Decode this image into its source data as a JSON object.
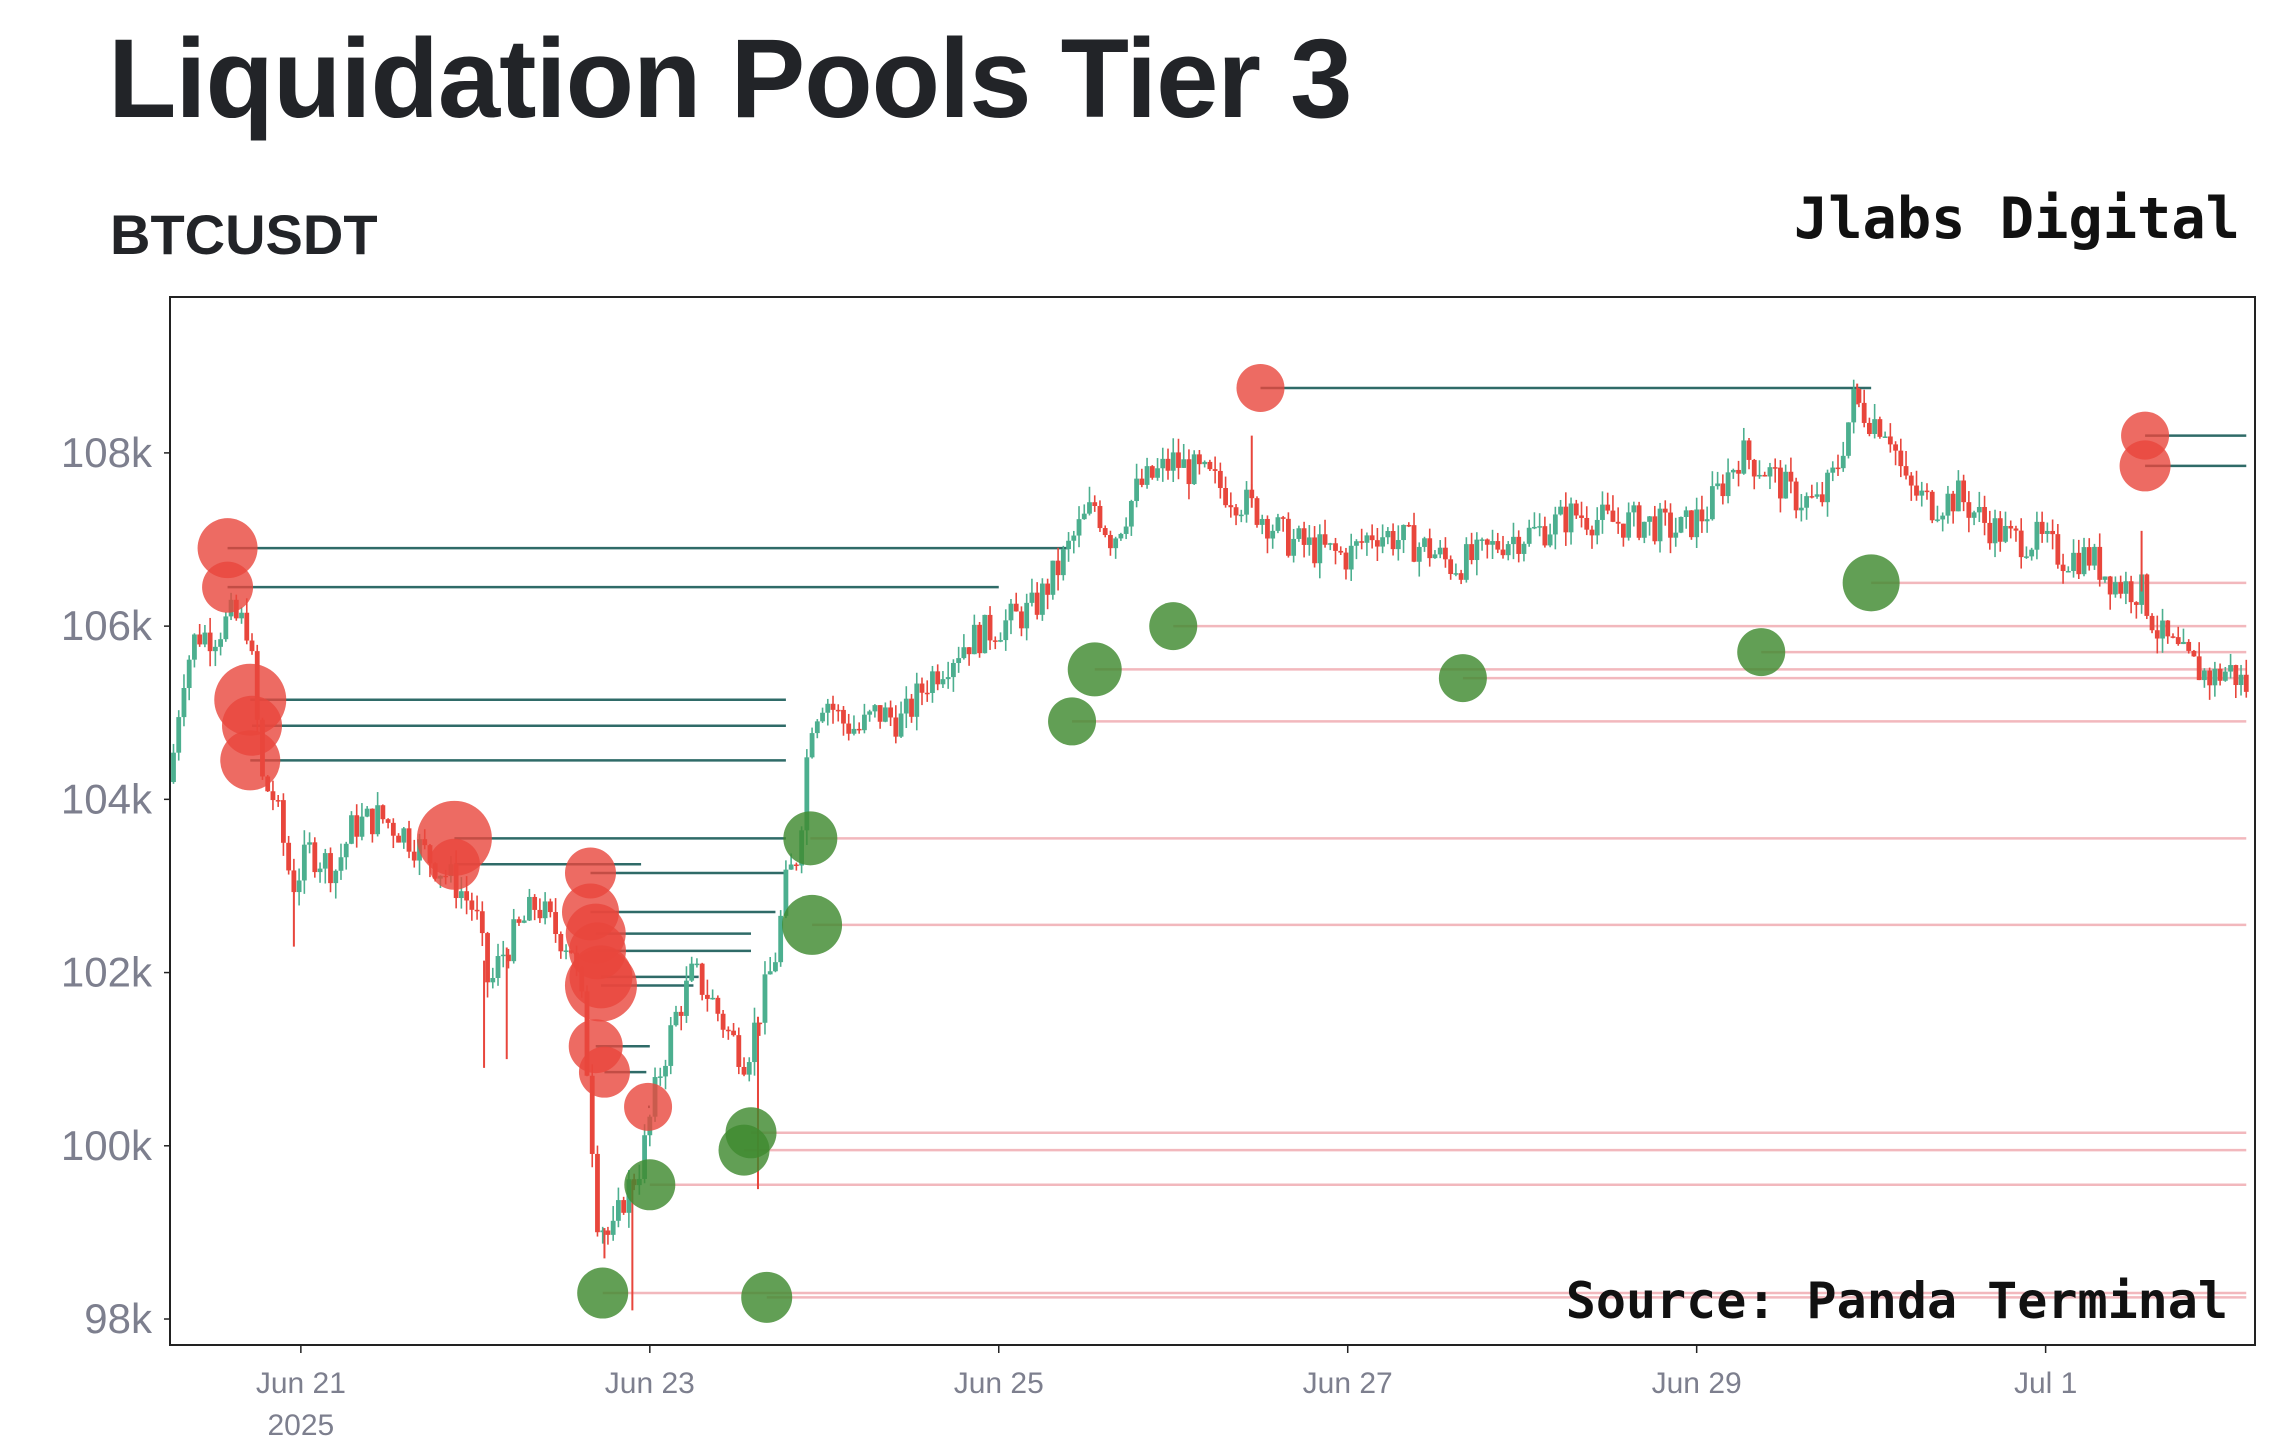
{
  "header": {
    "title": "Liquidation Pools Tier 3",
    "symbol": "BTCUSDT",
    "brand": "Jlabs Digital"
  },
  "chart_data": {
    "type": "candlestick",
    "source": "Source: Panda Terminal",
    "xlim": [
      -0.75,
      11.2
    ],
    "ylim": [
      97700,
      109800
    ],
    "yticks": [
      {
        "value": 98000,
        "label": "98k"
      },
      {
        "value": 100000,
        "label": "100k"
      },
      {
        "value": 102000,
        "label": "102k"
      },
      {
        "value": 104000,
        "label": "104k"
      },
      {
        "value": 106000,
        "label": "106k"
      },
      {
        "value": 108000,
        "label": "108k"
      }
    ],
    "xticks": [
      {
        "day": 0,
        "label": "Jun 21",
        "sub": "2025"
      },
      {
        "day": 2,
        "label": "Jun 23"
      },
      {
        "day": 4,
        "label": "Jun 25"
      },
      {
        "day": 6,
        "label": "Jun 27"
      },
      {
        "day": 8,
        "label": "Jun 29"
      },
      {
        "day": 10,
        "label": "Jul 1"
      }
    ],
    "colors": {
      "up": "#4caf8f",
      "down": "#e8463c",
      "short_pool": "#e8463c",
      "long_pool": "#3f8a2f",
      "short_line": "#2f6b68",
      "long_line": "#f2b8bd"
    },
    "price_path": [
      [
        -0.75,
        104200
      ],
      [
        -0.68,
        105400
      ],
      [
        -0.6,
        105900
      ],
      [
        -0.5,
        105900
      ],
      [
        -0.4,
        106100
      ],
      [
        -0.3,
        106000
      ],
      [
        -0.22,
        104200
      ],
      [
        -0.15,
        104000
      ],
      [
        -0.05,
        103000
      ],
      [
        0.05,
        103400
      ],
      [
        0.2,
        103200
      ],
      [
        0.3,
        103700
      ],
      [
        0.45,
        103800
      ],
      [
        0.6,
        103600
      ],
      [
        0.7,
        103400
      ],
      [
        0.8,
        103200
      ],
      [
        0.9,
        103000
      ],
      [
        1.0,
        102700
      ],
      [
        1.08,
        101800
      ],
      [
        1.15,
        102200
      ],
      [
        1.25,
        102500
      ],
      [
        1.35,
        102800
      ],
      [
        1.45,
        102500
      ],
      [
        1.55,
        102300
      ],
      [
        1.62,
        101500
      ],
      [
        1.7,
        99200
      ],
      [
        1.78,
        98900
      ],
      [
        1.85,
        99400
      ],
      [
        1.95,
        99800
      ],
      [
        2.05,
        100800
      ],
      [
        2.15,
        101500
      ],
      [
        2.25,
        102000
      ],
      [
        2.35,
        101700
      ],
      [
        2.45,
        101300
      ],
      [
        2.55,
        101000
      ],
      [
        2.65,
        101700
      ],
      [
        2.72,
        102200
      ],
      [
        2.78,
        103000
      ],
      [
        2.85,
        103400
      ],
      [
        2.92,
        104900
      ],
      [
        3.0,
        105200
      ],
      [
        3.1,
        104900
      ],
      [
        3.2,
        104800
      ],
      [
        3.3,
        105000
      ],
      [
        3.45,
        104900
      ],
      [
        3.6,
        105400
      ],
      [
        3.8,
        105800
      ],
      [
        4.0,
        106000
      ],
      [
        4.2,
        106200
      ],
      [
        4.35,
        106700
      ],
      [
        4.45,
        107100
      ],
      [
        4.55,
        107400
      ],
      [
        4.65,
        107000
      ],
      [
        4.8,
        107600
      ],
      [
        5.0,
        107900
      ],
      [
        5.2,
        107700
      ],
      [
        5.35,
        107500
      ],
      [
        5.5,
        107300
      ],
      [
        5.65,
        107000
      ],
      [
        5.8,
        106900
      ],
      [
        6.0,
        106800
      ],
      [
        6.15,
        107100
      ],
      [
        6.3,
        107000
      ],
      [
        6.45,
        106900
      ],
      [
        6.6,
        106700
      ],
      [
        6.75,
        106800
      ],
      [
        6.9,
        107000
      ],
      [
        7.1,
        107100
      ],
      [
        7.3,
        107300
      ],
      [
        7.5,
        107200
      ],
      [
        7.7,
        107200
      ],
      [
        7.9,
        107100
      ],
      [
        8.05,
        107300
      ],
      [
        8.25,
        108000
      ],
      [
        8.4,
        107800
      ],
      [
        8.55,
        107500
      ],
      [
        8.7,
        107400
      ],
      [
        8.8,
        107800
      ],
      [
        8.9,
        108600
      ],
      [
        9.0,
        108400
      ],
      [
        9.1,
        108300
      ],
      [
        9.2,
        107600
      ],
      [
        9.35,
        107400
      ],
      [
        9.5,
        107500
      ],
      [
        9.65,
        107200
      ],
      [
        9.8,
        107000
      ],
      [
        9.95,
        107000
      ],
      [
        10.1,
        106800
      ],
      [
        10.25,
        106800
      ],
      [
        10.4,
        106500
      ],
      [
        10.55,
        106400
      ],
      [
        10.65,
        105900
      ],
      [
        10.8,
        105600
      ],
      [
        10.95,
        105400
      ],
      [
        11.05,
        105500
      ],
      [
        11.15,
        105300
      ]
    ],
    "spikes": [
      {
        "day": -0.04,
        "low": 102300
      },
      {
        "day": 1.05,
        "low": 100900
      },
      {
        "day": 1.18,
        "low": 101000
      },
      {
        "day": 1.74,
        "low": 98700
      },
      {
        "day": 1.9,
        "low": 98100
      },
      {
        "day": 2.62,
        "low": 99500
      },
      {
        "day": 5.45,
        "high": 108200
      },
      {
        "day": 8.92,
        "high": 108800
      },
      {
        "day": 10.55,
        "high": 107100
      }
    ],
    "short_pools": [
      {
        "day": -0.42,
        "price": 106900,
        "r": 20,
        "line_to": 4.4
      },
      {
        "day": -0.42,
        "price": 106450,
        "r": 17,
        "line_to": 4.0
      },
      {
        "day": -0.29,
        "price": 105150,
        "r": 24,
        "line_to": 2.78
      },
      {
        "day": -0.28,
        "price": 104850,
        "r": 20,
        "line_to": 2.78
      },
      {
        "day": -0.29,
        "price": 104450,
        "r": 20,
        "line_to": 2.78
      },
      {
        "day": 0.88,
        "price": 103550,
        "r": 25,
        "line_to": 2.78
      },
      {
        "day": 0.88,
        "price": 103250,
        "r": 17,
        "line_to": 1.95
      },
      {
        "day": 1.66,
        "price": 103150,
        "r": 17,
        "line_to": 2.78
      },
      {
        "day": 1.66,
        "price": 102700,
        "r": 19,
        "line_to": 2.72
      },
      {
        "day": 1.69,
        "price": 102450,
        "r": 20,
        "line_to": 2.58
      },
      {
        "day": 1.7,
        "price": 102250,
        "r": 19,
        "line_to": 2.58
      },
      {
        "day": 1.72,
        "price": 101950,
        "r": 21,
        "line_to": 2.28
      },
      {
        "day": 1.72,
        "price": 101850,
        "r": 24,
        "line_to": 2.25
      },
      {
        "day": 1.69,
        "price": 101150,
        "r": 18,
        "line_to": 2.0
      },
      {
        "day": 1.74,
        "price": 100850,
        "r": 17,
        "line_to": 1.98
      },
      {
        "day": 1.99,
        "price": 100450,
        "r": 16,
        "line_to": 2.0
      },
      {
        "day": 5.5,
        "price": 108750,
        "r": 16,
        "line_to": 9.0
      },
      {
        "day": 10.57,
        "price": 108200,
        "r": 16,
        "line_to": 11.15
      },
      {
        "day": 10.57,
        "price": 107850,
        "r": 17,
        "line_to": 11.15
      }
    ],
    "long_pools": [
      {
        "day": 1.73,
        "price": 98300,
        "r": 17
      },
      {
        "day": 2.0,
        "price": 99550,
        "r": 17
      },
      {
        "day": 2.54,
        "price": 99950,
        "r": 17
      },
      {
        "day": 2.58,
        "price": 100150,
        "r": 17
      },
      {
        "day": 2.67,
        "price": 98250,
        "r": 17
      },
      {
        "day": 2.92,
        "price": 103550,
        "r": 18
      },
      {
        "day": 2.93,
        "price": 102550,
        "r": 20
      },
      {
        "day": 4.42,
        "price": 104900,
        "r": 16
      },
      {
        "day": 4.55,
        "price": 105500,
        "r": 18
      },
      {
        "day": 5.0,
        "price": 106000,
        "r": 16
      },
      {
        "day": 6.66,
        "price": 105400,
        "r": 16
      },
      {
        "day": 8.37,
        "price": 105700,
        "r": 16
      },
      {
        "day": 9.0,
        "price": 106500,
        "r": 19
      }
    ]
  }
}
